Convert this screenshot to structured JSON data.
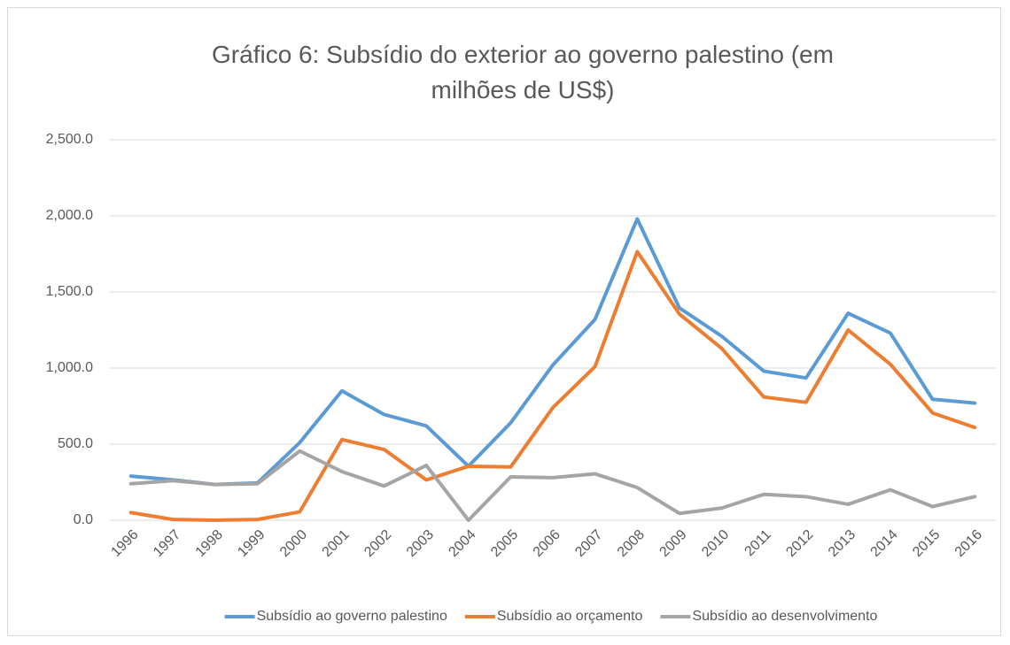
{
  "chart_data": {
    "type": "line",
    "title": "Gráfico 6: Subsídio do exterior ao governo palestino (em milhões de US$)",
    "categories": [
      "1996",
      "1997",
      "1998",
      "1999",
      "2000",
      "2001",
      "2002",
      "2003",
      "2004",
      "2005",
      "2006",
      "2007",
      "2008",
      "2009",
      "2010",
      "2011",
      "2012",
      "2013",
      "2014",
      "2015",
      "2016"
    ],
    "series": [
      {
        "name": "Subsídio ao governo palestino",
        "color": "#5b9bd5",
        "values": [
          290,
          265,
          235,
          245,
          510,
          850,
          695,
          620,
          355,
          640,
          1020,
          1320,
          1980,
          1395,
          1210,
          980,
          935,
          1360,
          1230,
          795,
          770
        ]
      },
      {
        "name": "Subsídio ao orçamento",
        "color": "#ed7d31",
        "values": [
          50,
          5,
          0,
          5,
          55,
          530,
          465,
          265,
          355,
          350,
          740,
          1010,
          1765,
          1355,
          1130,
          810,
          775,
          1250,
          1025,
          705,
          610
        ]
      },
      {
        "name": "Subsídio ao desenvolvimento",
        "color": "#a5a5a5",
        "values": [
          240,
          260,
          235,
          240,
          455,
          320,
          225,
          360,
          0,
          285,
          280,
          305,
          215,
          45,
          80,
          170,
          155,
          105,
          200,
          90,
          155
        ]
      }
    ],
    "ylim": [
      0,
      2500
    ],
    "yticks": [
      {
        "value": 0,
        "label": "0.0"
      },
      {
        "value": 500,
        "label": "500.0"
      },
      {
        "value": 1000,
        "label": "1,000.0"
      },
      {
        "value": 1500,
        "label": "1,500.0"
      },
      {
        "value": 2000,
        "label": "2,000.0"
      },
      {
        "value": 2500,
        "label": "2,500.0"
      }
    ],
    "grid": true,
    "legend": "bottom"
  }
}
